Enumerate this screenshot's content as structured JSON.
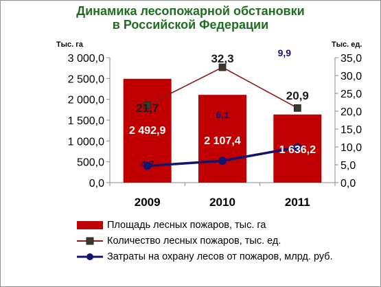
{
  "chart_data": {
    "type": "bar",
    "title_line1": "Динамика лесопожарной обстановки",
    "title_line2": "в Российской Федерации",
    "categories": [
      "2009",
      "2010",
      "2011"
    ],
    "left_axis": {
      "unit": "Тыс. га",
      "ylim": [
        0,
        3000
      ],
      "ticks": [
        "0,0",
        "500,0",
        "1 000,0",
        "1 500,0",
        "2 000,0",
        "2 500,0",
        "3 000,0"
      ]
    },
    "right_axis": {
      "unit": "Тыс. ед.",
      "ylim": [
        0,
        35
      ],
      "ticks": [
        "0,0",
        "5,0",
        "10,0",
        "15,0",
        "20,0",
        "25,0",
        "30,0",
        "35,0"
      ]
    },
    "series": [
      {
        "name": "Площадь лесных пожаров, тыс. га",
        "kind": "bar",
        "axis": "left",
        "color": "#c00000",
        "values": [
          2492.9,
          2107.4,
          1636.2
        ],
        "labels": [
          "2 492,9",
          "2 107,4",
          "1 636,2"
        ]
      },
      {
        "name": "Количество лесных пожаров, тыс. ед.",
        "kind": "line",
        "axis": "right",
        "color": "#8b1a1a",
        "marker_color": "#3a3a2a",
        "values": [
          21.7,
          32.3,
          20.9
        ],
        "labels": [
          "21,7",
          "32,3",
          "20,9"
        ]
      },
      {
        "name": "Затраты на охрану лесов от пожаров, млрд. руб.",
        "kind": "line",
        "axis": "right",
        "color": "#14146e",
        "values": [
          4.7,
          6.1,
          9.9
        ],
        "labels": [
          "4,7",
          "6,1",
          "9,9"
        ]
      }
    ],
    "grid": false,
    "legend_position": "bottom"
  }
}
